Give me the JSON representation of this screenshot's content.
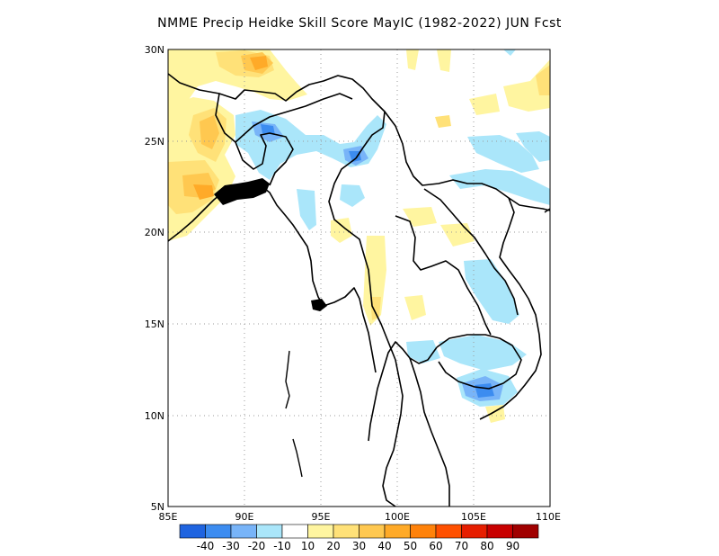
{
  "title": "NMME Precip Heidke Skill Score MayIC (1982-2022) JUN Fcst",
  "map": {
    "lon_range": [
      85,
      110
    ],
    "lat_range": [
      5,
      30
    ],
    "lon_ticks": [
      "85E",
      "90E",
      "95E",
      "100E",
      "105E",
      "110E"
    ],
    "lat_ticks": [
      "5N",
      "10N",
      "15N",
      "20N",
      "25N",
      "30N"
    ],
    "grid": "dotted"
  },
  "colorbar": {
    "colors": [
      "#1f64e0",
      "#3c8cf0",
      "#78b4f8",
      "#aae6fa",
      "#ffffff",
      "#fff5a0",
      "#ffe178",
      "#ffc850",
      "#ffaa28",
      "#ff820a",
      "#ff5000",
      "#e61e00",
      "#c80000",
      "#a00000"
    ],
    "labels": [
      "-40",
      "-30",
      "-20",
      "-10",
      "10",
      "20",
      "30",
      "40",
      "50",
      "60",
      "70",
      "80",
      "90"
    ]
  }
}
